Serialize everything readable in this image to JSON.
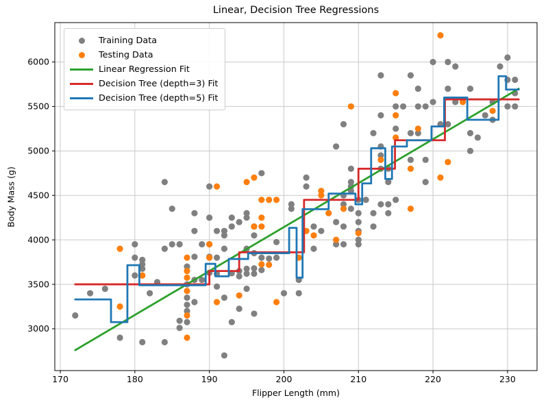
{
  "chart_data": {
    "type": "scatter",
    "title": "Linear, Decision Tree Regressions",
    "xlabel": "Flipper Length (mm)",
    "ylabel": "Body Mass (g)",
    "grid": true,
    "xlim": [
      169.26,
      233.96
    ],
    "ylim": [
      2530,
      6443
    ],
    "x_ticks": [
      170,
      180,
      190,
      200,
      210,
      220,
      230
    ],
    "y_ticks": [
      3000,
      3500,
      4000,
      4500,
      5000,
      5500,
      6000
    ],
    "legend_position": "upper left",
    "legend": [
      {
        "label": "Training Data",
        "type": "marker",
        "color": "#808080"
      },
      {
        "label": "Testing Data",
        "type": "marker",
        "color": "#ff7f0e"
      },
      {
        "label": "Linear Regression Fit",
        "type": "line",
        "color": "#2ca02c"
      },
      {
        "label": "Decision Tree (depth=3) Fit",
        "type": "line",
        "color": "#d62728"
      },
      {
        "label": "Decision Tree (depth=5) Fit",
        "type": "line",
        "color": "#1f77b4"
      }
    ],
    "series": [
      {
        "name": "Training Data",
        "kind": "scatter",
        "color": "#808080",
        "points": [
          [
            172,
            3150
          ],
          [
            174,
            3400
          ],
          [
            176,
            3450
          ],
          [
            178,
            2900
          ],
          [
            180,
            3950
          ],
          [
            180,
            3800
          ],
          [
            180,
            3600
          ],
          [
            181,
            3775
          ],
          [
            181,
            3725
          ],
          [
            181,
            3675
          ],
          [
            181,
            3600
          ],
          [
            181,
            2850
          ],
          [
            182,
            3400
          ],
          [
            183,
            3525
          ],
          [
            184,
            4650
          ],
          [
            184,
            3900
          ],
          [
            184,
            2850
          ],
          [
            185,
            4350
          ],
          [
            185,
            3950
          ],
          [
            186,
            3950
          ],
          [
            186,
            3090
          ],
          [
            186,
            3010
          ],
          [
            187,
            3700
          ],
          [
            187,
            3500
          ],
          [
            187,
            3350
          ],
          [
            187,
            3270
          ],
          [
            187,
            3200
          ],
          [
            187,
            3075
          ],
          [
            188,
            4300
          ],
          [
            188,
            4100
          ],
          [
            188,
            3810
          ],
          [
            188,
            3550
          ],
          [
            188,
            3300
          ],
          [
            189,
            3950
          ],
          [
            189,
            3550
          ],
          [
            190,
            4600
          ],
          [
            190,
            4250
          ],
          [
            190,
            3950
          ],
          [
            190,
            3810
          ],
          [
            190,
            3630
          ],
          [
            191,
            4100
          ],
          [
            191,
            3800
          ],
          [
            191,
            3620
          ],
          [
            191,
            3475
          ],
          [
            192,
            4100
          ],
          [
            192,
            4050
          ],
          [
            192,
            3900
          ],
          [
            192,
            3350
          ],
          [
            192,
            2700
          ],
          [
            193,
            4250
          ],
          [
            193,
            4150
          ],
          [
            193,
            3625
          ],
          [
            193,
            3075
          ],
          [
            194,
            4200
          ],
          [
            194,
            3650
          ],
          [
            194,
            3590
          ],
          [
            194,
            3225
          ],
          [
            195,
            4300
          ],
          [
            195,
            4250
          ],
          [
            195,
            3900
          ],
          [
            195,
            3675
          ],
          [
            195,
            3620
          ],
          [
            195,
            3450
          ],
          [
            196,
            4150
          ],
          [
            196,
            4050
          ],
          [
            196,
            3850
          ],
          [
            196,
            3680
          ],
          [
            196,
            3620
          ],
          [
            196,
            3170
          ],
          [
            197,
            4750
          ],
          [
            197,
            3800
          ],
          [
            197,
            3660
          ],
          [
            198,
            3790
          ],
          [
            199,
            3975
          ],
          [
            199,
            3800
          ],
          [
            200,
            3400
          ],
          [
            201,
            4400
          ],
          [
            201,
            4350
          ],
          [
            202,
            3550
          ],
          [
            202,
            3400
          ],
          [
            203,
            4700
          ],
          [
            203,
            4600
          ],
          [
            204,
            4150
          ],
          [
            204,
            3900
          ],
          [
            205,
            4100
          ],
          [
            207,
            5050
          ],
          [
            207,
            4200
          ],
          [
            207,
            3950
          ],
          [
            208,
            5300
          ],
          [
            208,
            4500
          ],
          [
            208,
            4400
          ],
          [
            208,
            4150
          ],
          [
            208,
            3950
          ],
          [
            209,
            4800
          ],
          [
            209,
            4650
          ],
          [
            209,
            4600
          ],
          [
            209,
            4550
          ],
          [
            209,
            4350
          ],
          [
            210,
            4450
          ],
          [
            210,
            4300
          ],
          [
            210,
            4200
          ],
          [
            210,
            4100
          ],
          [
            210,
            4000
          ],
          [
            210,
            3950
          ],
          [
            211,
            4450
          ],
          [
            212,
            5200
          ],
          [
            212,
            4300
          ],
          [
            212,
            4150
          ],
          [
            213,
            5850
          ],
          [
            213,
            5400
          ],
          [
            213,
            5050
          ],
          [
            213,
            4950
          ],
          [
            213,
            4800
          ],
          [
            213,
            4400
          ],
          [
            214,
            4800
          ],
          [
            214,
            4650
          ],
          [
            214,
            4400
          ],
          [
            214,
            4300
          ],
          [
            215,
            5500
          ],
          [
            215,
            5250
          ],
          [
            215,
            4450
          ],
          [
            216,
            5500
          ],
          [
            217,
            5850
          ],
          [
            217,
            5200
          ],
          [
            217,
            4900
          ],
          [
            218,
            5700
          ],
          [
            218,
            5500
          ],
          [
            218,
            5200
          ],
          [
            219,
            5500
          ],
          [
            219,
            4900
          ],
          [
            219,
            4650
          ],
          [
            220,
            6000
          ],
          [
            220,
            5550
          ],
          [
            221,
            5300
          ],
          [
            222,
            6000
          ],
          [
            222,
            5700
          ],
          [
            222,
            5300
          ],
          [
            223,
            5950
          ],
          [
            223,
            5550
          ],
          [
            225,
            5700
          ],
          [
            225,
            5200
          ],
          [
            225,
            5000
          ],
          [
            226,
            5150
          ],
          [
            227,
            5400
          ],
          [
            228,
            5550
          ],
          [
            228,
            5350
          ],
          [
            229,
            5950
          ],
          [
            230,
            6050
          ],
          [
            230,
            5800
          ],
          [
            230,
            5500
          ],
          [
            231,
            5800
          ],
          [
            231,
            5650
          ],
          [
            231,
            5500
          ]
        ]
      },
      {
        "name": "Testing Data",
        "kind": "scatter",
        "color": "#ff7f0e",
        "points": [
          [
            178,
            3900
          ],
          [
            178,
            3250
          ],
          [
            181,
            3600
          ],
          [
            187,
            3800
          ],
          [
            187,
            3650
          ],
          [
            187,
            3575
          ],
          [
            187,
            3425
          ],
          [
            187,
            3150
          ],
          [
            187,
            2900
          ],
          [
            190,
            3950
          ],
          [
            190,
            3800
          ],
          [
            191,
            4600
          ],
          [
            191,
            3300
          ],
          [
            194,
            3375
          ],
          [
            195,
            4650
          ],
          [
            196,
            4700
          ],
          [
            196,
            4150
          ],
          [
            197,
            4450
          ],
          [
            197,
            4250
          ],
          [
            197,
            4150
          ],
          [
            197,
            3725
          ],
          [
            198,
            4450
          ],
          [
            198,
            3720
          ],
          [
            199,
            4450
          ],
          [
            199,
            3300
          ],
          [
            202,
            3800
          ],
          [
            203,
            4100
          ],
          [
            204,
            4050
          ],
          [
            205,
            4550
          ],
          [
            205,
            4500
          ],
          [
            206,
            4300
          ],
          [
            207,
            4000
          ],
          [
            208,
            4350
          ],
          [
            209,
            5500
          ],
          [
            210,
            4075
          ],
          [
            213,
            4900
          ],
          [
            215,
            5650
          ],
          [
            215,
            5400
          ],
          [
            215,
            5150
          ],
          [
            217,
            4800
          ],
          [
            217,
            4350
          ],
          [
            218,
            5250
          ],
          [
            221,
            6300
          ],
          [
            221,
            4700
          ],
          [
            222,
            4875
          ],
          [
            224,
            5550
          ],
          [
            228,
            5450
          ]
        ]
      },
      {
        "name": "Linear Regression Fit",
        "kind": "line",
        "color": "#2ca02c",
        "points": [
          [
            172,
            2760
          ],
          [
            231.5,
            5700
          ]
        ]
      },
      {
        "name": "Decision Tree (depth=3) Fit",
        "kind": "step",
        "color": "#d62728",
        "segments": [
          [
            172,
            190,
            3500
          ],
          [
            190,
            194,
            3650
          ],
          [
            194,
            202.7,
            3860
          ],
          [
            202.7,
            210,
            4450
          ],
          [
            210,
            214.9,
            4800
          ],
          [
            214.9,
            221.6,
            5120
          ],
          [
            221.6,
            231.5,
            5580
          ]
        ]
      },
      {
        "name": "Decision Tree (depth=5) Fit",
        "kind": "step",
        "color": "#1f77b4",
        "segments": [
          [
            172,
            176.8,
            3330
          ],
          [
            176.8,
            179,
            3075
          ],
          [
            179,
            180.6,
            3715
          ],
          [
            180.6,
            189.5,
            3490
          ],
          [
            189.5,
            190.8,
            3730
          ],
          [
            190.8,
            192.6,
            3590
          ],
          [
            192.6,
            195.2,
            3785
          ],
          [
            195.2,
            200.7,
            3850
          ],
          [
            200.7,
            201.7,
            4135
          ],
          [
            201.7,
            202.5,
            3575
          ],
          [
            202.5,
            206,
            4345
          ],
          [
            206,
            209.6,
            4520
          ],
          [
            209.6,
            210.5,
            4400
          ],
          [
            210.5,
            211.7,
            4635
          ],
          [
            211.7,
            213.6,
            5030
          ],
          [
            213.6,
            214.5,
            4685
          ],
          [
            214.5,
            216.5,
            5050
          ],
          [
            216.5,
            219.8,
            5120
          ],
          [
            219.8,
            221.5,
            5275
          ],
          [
            221.5,
            224.6,
            5600
          ],
          [
            224.6,
            228.8,
            5350
          ],
          [
            228.8,
            229.8,
            5840
          ],
          [
            229.8,
            231.5,
            5690
          ]
        ]
      }
    ],
    "colors": {
      "train": "#808080",
      "test": "#ff7f0e",
      "linear_fit": "#2ca02c",
      "tree_depth3_fit": "#d62728",
      "tree_depth5_fit": "#1f77b4",
      "grid": "#c9c9c9",
      "spine": "#000000"
    }
  }
}
